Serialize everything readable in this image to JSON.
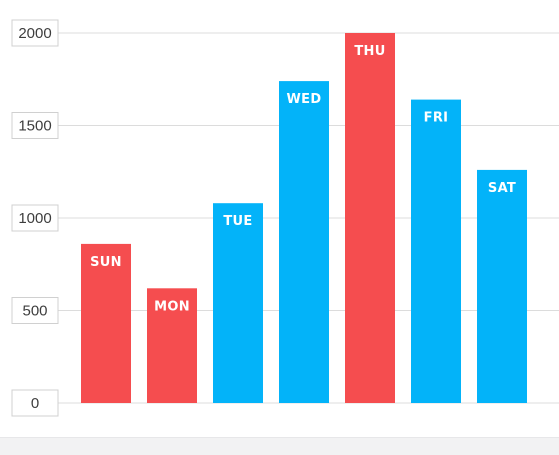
{
  "chart_data": {
    "type": "bar",
    "categories": [
      "SUN",
      "MON",
      "TUE",
      "WED",
      "THU",
      "FRI",
      "SAT"
    ],
    "values": [
      860,
      620,
      1080,
      1740,
      2000,
      1640,
      1260
    ],
    "ylim": [
      0,
      2000
    ],
    "yticks": [
      "0",
      "500",
      "1000",
      "1500",
      "2000"
    ],
    "title": "",
    "xlabel": "",
    "ylabel": "",
    "grid": true,
    "legend": "none",
    "colors": {
      "weekend": "#f54d4f",
      "peak": "#f54d4f",
      "weekday": "#03b3f9",
      "grid": "#dcdcdc",
      "tick_box_border": "#d0d0d0"
    },
    "bar_colors": [
      "#f54d4f",
      "#f54d4f",
      "#03b3f9",
      "#03b3f9",
      "#f54d4f",
      "#03b3f9",
      "#03b3f9"
    ]
  }
}
